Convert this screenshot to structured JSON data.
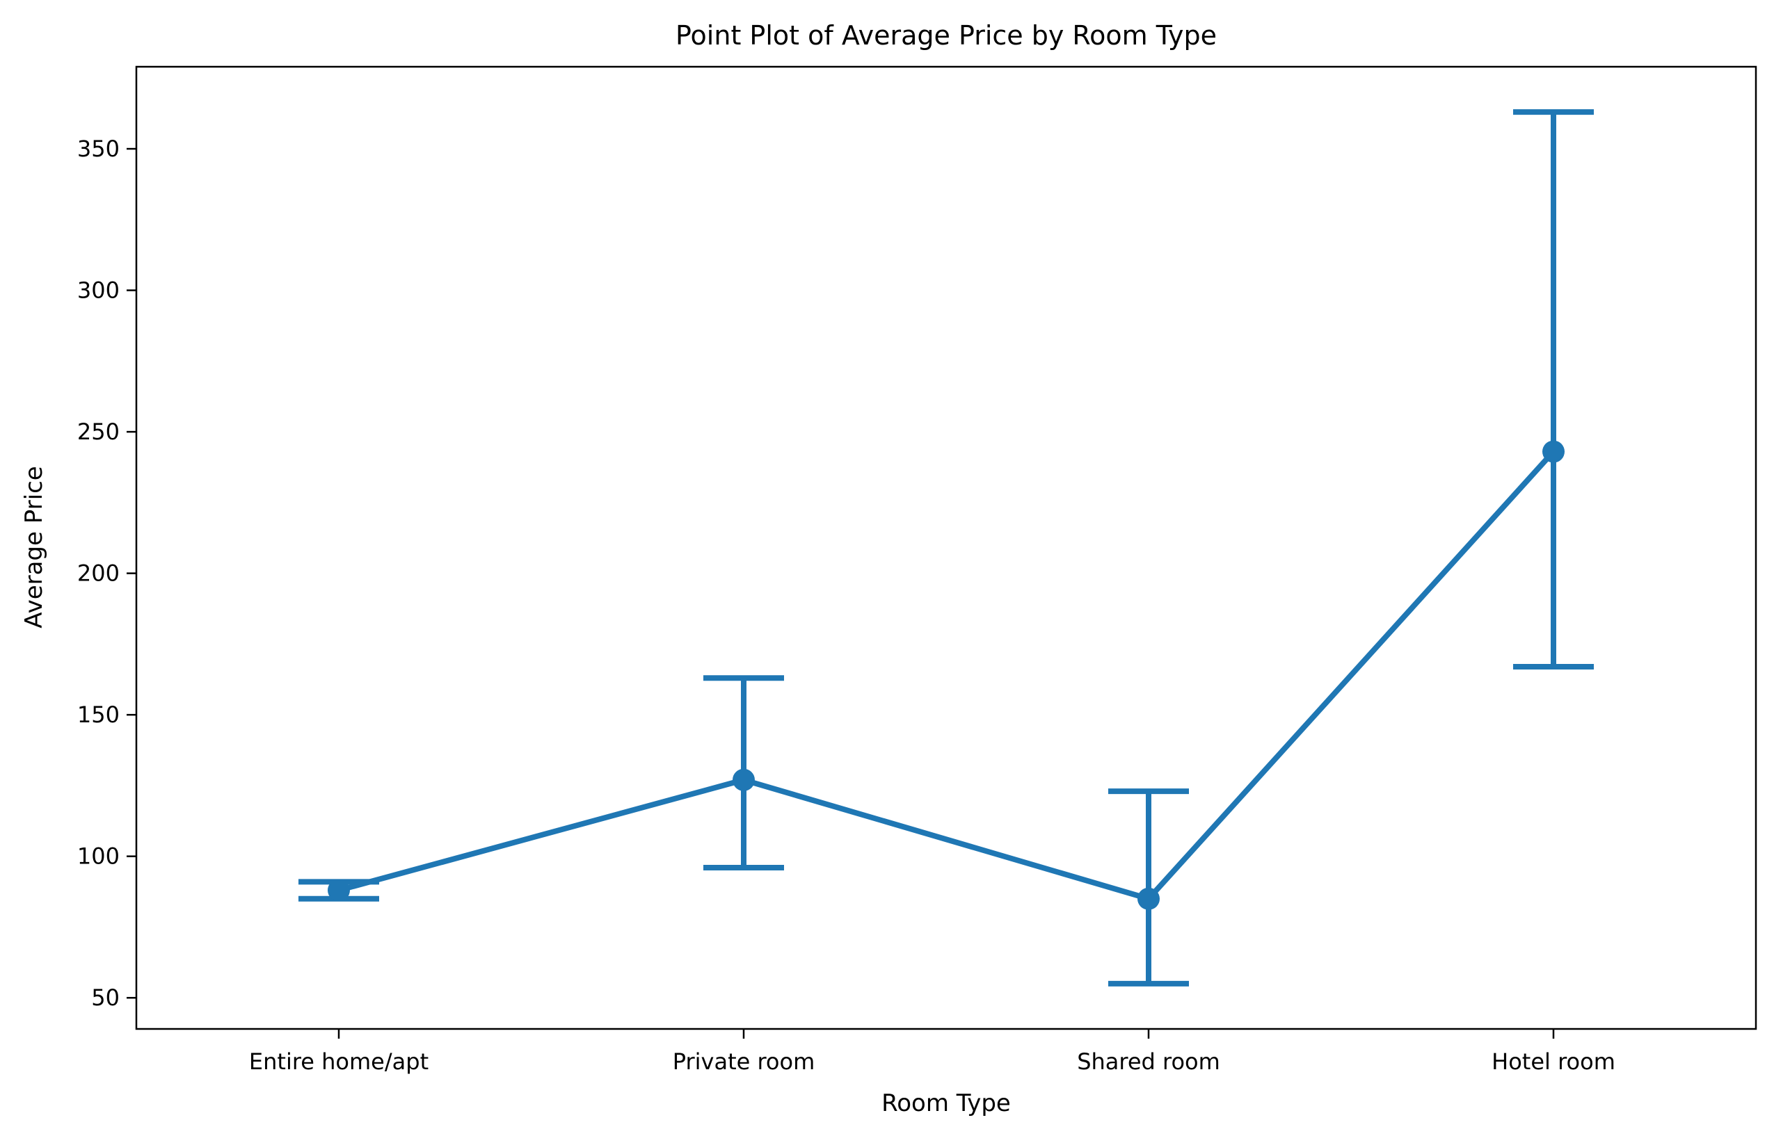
{
  "chart_data": {
    "type": "point",
    "title": "Point Plot of Average Price by Room Type",
    "xlabel": "Room Type",
    "ylabel": "Average Price",
    "categories": [
      "Entire home/apt",
      "Private room",
      "Shared room",
      "Hotel room"
    ],
    "values": [
      88,
      127,
      85,
      243
    ],
    "ci_low": [
      85,
      96,
      55,
      167
    ],
    "ci_high": [
      91,
      163,
      123,
      363
    ],
    "ylim": [
      39,
      379
    ],
    "yticks": [
      50,
      100,
      150,
      200,
      250,
      300,
      350
    ],
    "grid": false,
    "color": "#1f77b4"
  }
}
